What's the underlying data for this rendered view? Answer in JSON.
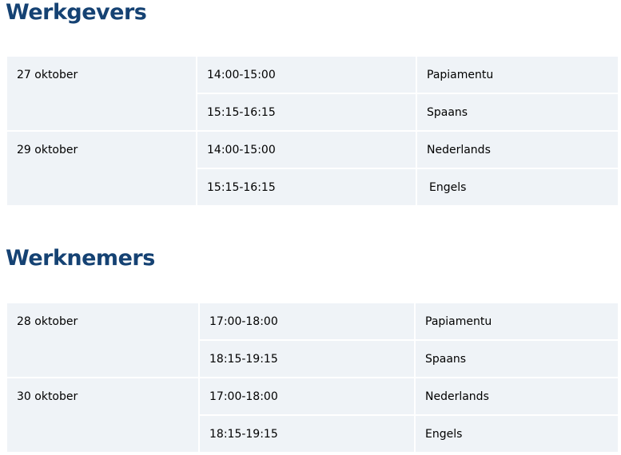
{
  "sections": [
    {
      "title": "Werkgevers",
      "rows": [
        {
          "date": "27 oktober",
          "sessions": [
            {
              "time": "14:00-15:00",
              "language": "Papiamentu"
            },
            {
              "time": "15:15-16:15",
              "language": "Spaans"
            }
          ]
        },
        {
          "date": "29 oktober",
          "sessions": [
            {
              "time": "14:00-15:00",
              "language": "Nederlands"
            },
            {
              "time": "15:15-16:15",
              "language": "Engels"
            }
          ]
        }
      ]
    },
    {
      "title": "Werknemers",
      "rows": [
        {
          "date": "28 oktober",
          "sessions": [
            {
              "time": "17:00-18:00",
              "language": "Papiamentu"
            },
            {
              "time": "18:15-19:15",
              "language": "Spaans"
            }
          ]
        },
        {
          "date": "30 oktober",
          "sessions": [
            {
              "time": "17:00-18:00",
              "language": "Nederlands"
            },
            {
              "time": "18:15-19:15",
              "language": "Engels"
            }
          ]
        }
      ]
    }
  ]
}
